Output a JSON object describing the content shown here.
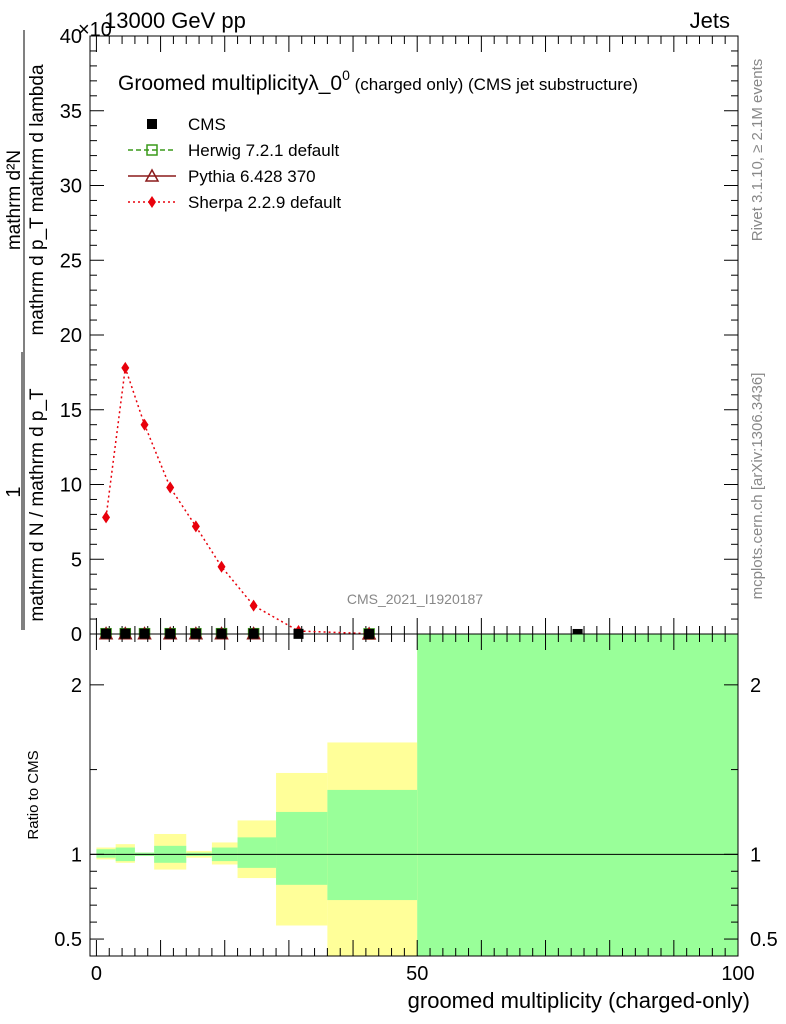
{
  "header": {
    "top_left": "13000 GeV pp",
    "top_right": "Jets",
    "exponent": "×10"
  },
  "chart_data": [
    {
      "type": "line",
      "panel": "main",
      "title": "Groomed multiplicityλ_0",
      "title_superscript": "0",
      "title_suffix_small": " (charged only)",
      "title_suffix": " (CMS jet substructure)",
      "ylabel_numerator": "mathrm d²N",
      "ylabel_denominator": "mathrm d p_T mathrm d lambda",
      "ylabel_prefix": "1",
      "ylabel_prefix_den": "mathrm d N / mathrm d p_T",
      "ylim": [
        0,
        40
      ],
      "yticks": [
        "0",
        "5",
        "10",
        "15",
        "20",
        "25",
        "30",
        "35",
        "40"
      ],
      "ytick_values": [
        0,
        5,
        10,
        15,
        20,
        25,
        30,
        35,
        40
      ],
      "xlim": [
        -1,
        100
      ],
      "analysis_label": "CMS_2021_I1920187",
      "side_label_top": "Rivet 3.1.10, ≥ 2.1M events",
      "side_label_bottom": "mcplots.cern.ch [arXiv:1306.3436]",
      "legend": [
        {
          "name": "CMS",
          "color": "#000000",
          "style": "square"
        },
        {
          "name": "Herwig 7.2.1 default",
          "color": "#3a9a1a",
          "style": "open-square-dashed"
        },
        {
          "name": "Pythia 6.428 370",
          "color": "#8b1a1a",
          "style": "open-triangle-solid"
        },
        {
          "name": "Sherpa 2.2.9 default",
          "color": "#e8000b",
          "style": "diamond-dotted"
        }
      ],
      "series": [
        {
          "name": "Sherpa 2.2.9 default",
          "x": [
            1.5,
            4.5,
            7.5,
            11.5,
            15.5,
            19.5,
            24.5,
            31.5,
            42.5
          ],
          "values": [
            7.8,
            17.8,
            14.0,
            9.8,
            7.2,
            4.5,
            1.9,
            0.2,
            0.02
          ]
        },
        {
          "name": "CMS",
          "x": [
            1.5,
            4.5,
            7.5,
            11.5,
            15.5,
            19.5,
            24.5,
            31.5,
            42.5,
            75
          ],
          "values": [
            0.02,
            0.02,
            0.02,
            0.02,
            0.02,
            0.02,
            0.02,
            0.01,
            0.005,
            0.002
          ]
        },
        {
          "name": "Herwig 7.2.1 default",
          "x": [
            1.5,
            4.5,
            7.5,
            11.5,
            15.5,
            19.5,
            24.5,
            42.5
          ],
          "values": [
            0.02,
            0.02,
            0.02,
            0.02,
            0.02,
            0.02,
            0.02,
            0.005
          ]
        },
        {
          "name": "Pythia 6.428 370",
          "x": [
            1.5,
            4.5,
            7.5,
            11.5,
            15.5,
            19.5,
            24.5,
            42.5
          ],
          "values": [
            0.02,
            0.02,
            0.02,
            0.02,
            0.02,
            0.02,
            0.02,
            0.005
          ]
        }
      ]
    },
    {
      "type": "area",
      "panel": "ratio",
      "ylabel": "Ratio to CMS",
      "xlabel": "groomed multiplicity (charged-only)",
      "xlim": [
        -1,
        100
      ],
      "ylim": [
        0.4,
        2.3
      ],
      "xticks": [
        "0",
        "50",
        "100"
      ],
      "xtick_values": [
        0,
        50,
        100
      ],
      "yticks": [
        "0.5",
        "1",
        "2"
      ],
      "ytick_values": [
        0.5,
        1,
        2
      ],
      "bands": [
        {
          "x0": 0,
          "x1": 3,
          "yellow": [
            0.97,
            1.04
          ],
          "green": [
            0.98,
            1.03
          ]
        },
        {
          "x0": 3,
          "x1": 6,
          "yellow": [
            0.95,
            1.06
          ],
          "green": [
            0.96,
            1.04
          ]
        },
        {
          "x0": 6,
          "x1": 9,
          "yellow": [
            0.99,
            1.01
          ],
          "green": [
            0.99,
            1.01
          ]
        },
        {
          "x0": 9,
          "x1": 14,
          "yellow": [
            0.91,
            1.12
          ],
          "green": [
            0.95,
            1.05
          ]
        },
        {
          "x0": 14,
          "x1": 18,
          "yellow": [
            0.98,
            1.02
          ],
          "green": [
            0.99,
            1.01
          ]
        },
        {
          "x0": 18,
          "x1": 22,
          "yellow": [
            0.94,
            1.07
          ],
          "green": [
            0.96,
            1.04
          ]
        },
        {
          "x0": 22,
          "x1": 28,
          "yellow": [
            0.86,
            1.2
          ],
          "green": [
            0.92,
            1.1
          ]
        },
        {
          "x0": 28,
          "x1": 36,
          "yellow": [
            0.58,
            1.48
          ],
          "green": [
            0.82,
            1.25
          ]
        },
        {
          "x0": 36,
          "x1": 50,
          "yellow": [
            0.35,
            1.66
          ],
          "green": [
            0.73,
            1.38
          ]
        },
        {
          "x0": 50,
          "x1": 100,
          "yellow": [
            0.35,
            2.3
          ],
          "green": [
            0.35,
            2.3
          ]
        }
      ]
    }
  ]
}
